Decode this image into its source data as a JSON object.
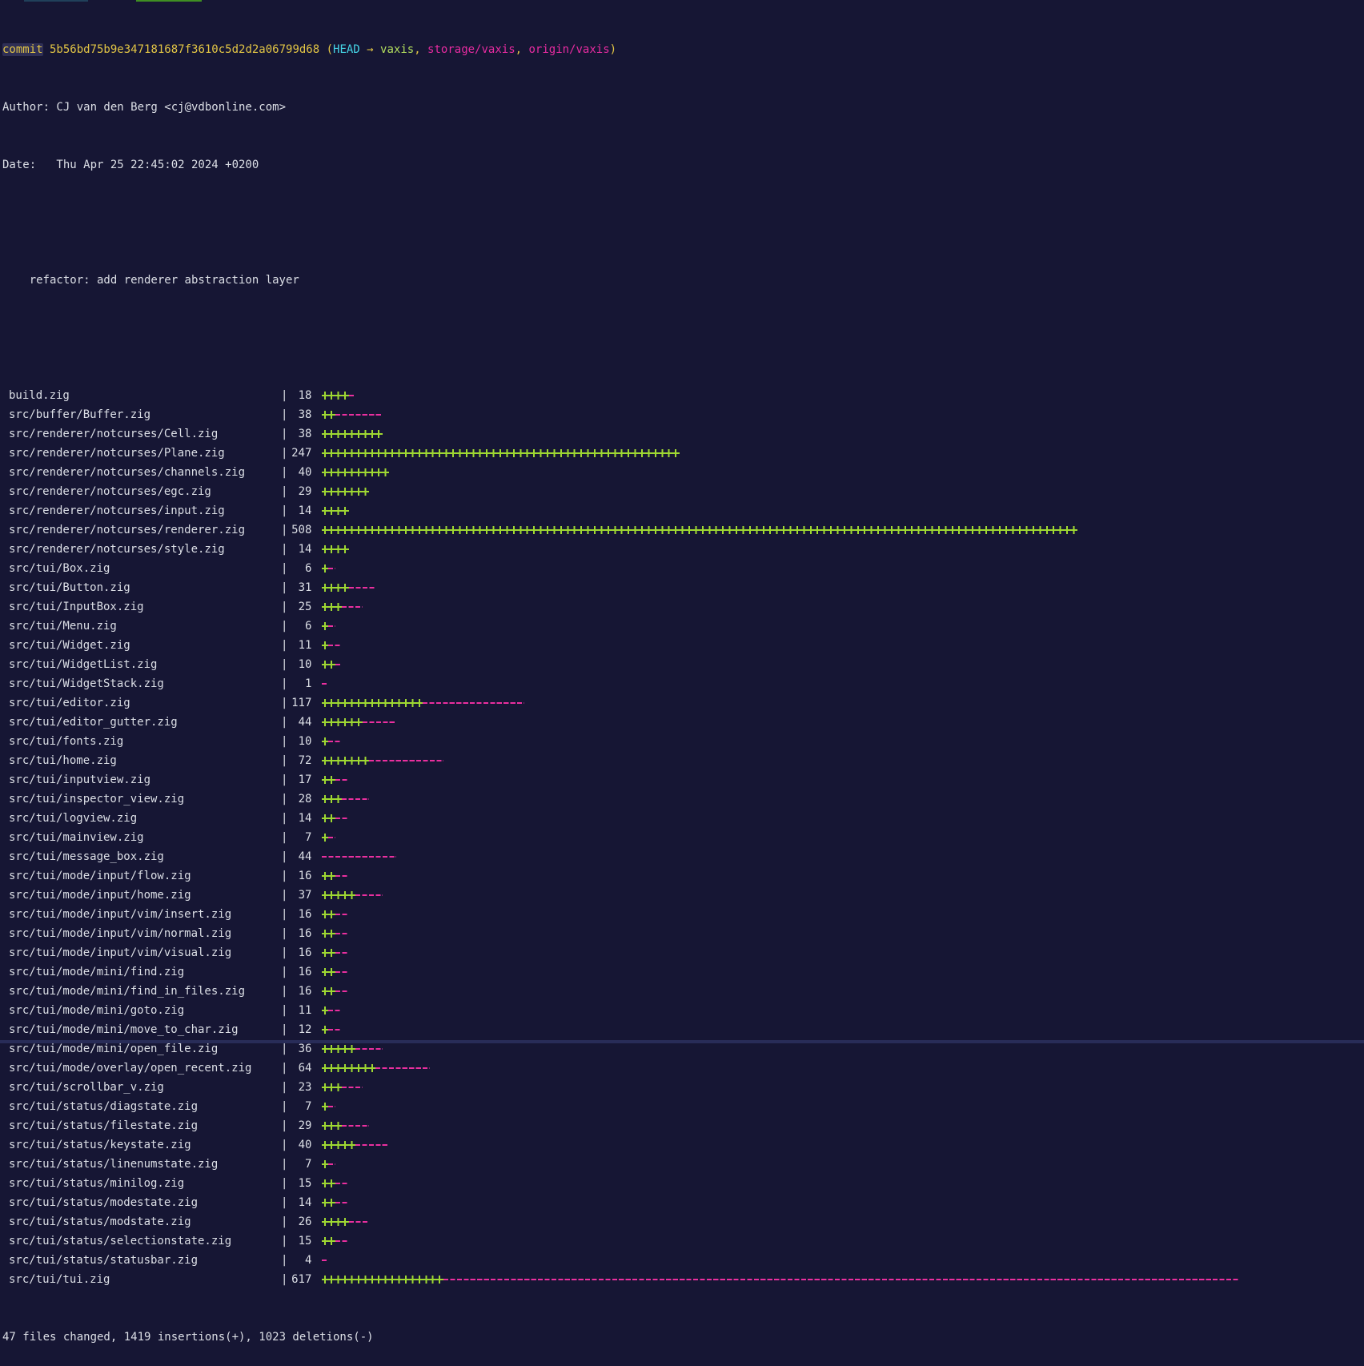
{
  "ui": {
    "pipe": "|"
  },
  "colors": {
    "background": "#161634",
    "foreground": "#dcdfe6",
    "yellow": "#e2c545",
    "cyan": "#45d5e6",
    "branch_green": "#b3df5e",
    "branch_pink": "#e62ba0",
    "plus_green": "#9fd832",
    "minus_pink": "#ea2f9f"
  },
  "commit_line": {
    "commit_label": "commit",
    "hash_open": " 5b56bd75b9e347181687f3610c5d2d2a06799d68 (",
    "head": "HEAD",
    "arrow": " → ",
    "branch": "vaxis",
    "comma1": ", ",
    "remote1": "storage/vaxis",
    "comma2": ", ",
    "remote2": "origin/vaxis",
    "close": ")"
  },
  "author_line": "Author: CJ van den Berg <cj@vdbonline.com>",
  "date_line": "Date:   Thu Apr 25 22:45:02 2024 +0200",
  "message": "refactor: add renderer abstraction layer",
  "summary": "47 files changed, 1419 insertions(+), 1023 deletions(-)",
  "files": [
    {
      "name": "build.zig",
      "changes": "18",
      "plus": 4,
      "minus": 1
    },
    {
      "name": "src/buffer/Buffer.zig",
      "changes": "38",
      "plus": 2,
      "minus": 7
    },
    {
      "name": "src/renderer/notcurses/Cell.zig",
      "changes": "38",
      "plus": 9,
      "minus": 0
    },
    {
      "name": "src/renderer/notcurses/Plane.zig",
      "changes": "247",
      "plus": 53,
      "minus": 0
    },
    {
      "name": "src/renderer/notcurses/channels.zig",
      "changes": "40",
      "plus": 10,
      "minus": 0
    },
    {
      "name": "src/renderer/notcurses/egc.zig",
      "changes": "29",
      "plus": 7,
      "minus": 0
    },
    {
      "name": "src/renderer/notcurses/input.zig",
      "changes": "14",
      "plus": 4,
      "minus": 0
    },
    {
      "name": "src/renderer/notcurses/renderer.zig",
      "changes": "508",
      "plus": 112,
      "minus": 0
    },
    {
      "name": "src/renderer/notcurses/style.zig",
      "changes": "14",
      "plus": 4,
      "minus": 0
    },
    {
      "name": "src/tui/Box.zig",
      "changes": "6",
      "plus": 1,
      "minus": 1
    },
    {
      "name": "src/tui/Button.zig",
      "changes": "31",
      "plus": 4,
      "minus": 4
    },
    {
      "name": "src/tui/InputBox.zig",
      "changes": "25",
      "plus": 3,
      "minus": 3
    },
    {
      "name": "src/tui/Menu.zig",
      "changes": "6",
      "plus": 1,
      "minus": 1
    },
    {
      "name": "src/tui/Widget.zig",
      "changes": "11",
      "plus": 1,
      "minus": 2
    },
    {
      "name": "src/tui/WidgetList.zig",
      "changes": "10",
      "plus": 2,
      "minus": 1
    },
    {
      "name": "src/tui/WidgetStack.zig",
      "changes": "1",
      "plus": 0,
      "minus": 1
    },
    {
      "name": "src/tui/editor.zig",
      "changes": "117",
      "plus": 15,
      "minus": 15
    },
    {
      "name": "src/tui/editor_gutter.zig",
      "changes": "44",
      "plus": 6,
      "minus": 5
    },
    {
      "name": "src/tui/fonts.zig",
      "changes": "10",
      "plus": 1,
      "minus": 2
    },
    {
      "name": "src/tui/home.zig",
      "changes": "72",
      "plus": 7,
      "minus": 11
    },
    {
      "name": "src/tui/inputview.zig",
      "changes": "17",
      "plus": 2,
      "minus": 2
    },
    {
      "name": "src/tui/inspector_view.zig",
      "changes": "28",
      "plus": 3,
      "minus": 4
    },
    {
      "name": "src/tui/logview.zig",
      "changes": "14",
      "plus": 2,
      "minus": 2
    },
    {
      "name": "src/tui/mainview.zig",
      "changes": "7",
      "plus": 1,
      "minus": 1
    },
    {
      "name": "src/tui/message_box.zig",
      "changes": "44",
      "plus": 0,
      "minus": 11
    },
    {
      "name": "src/tui/mode/input/flow.zig",
      "changes": "16",
      "plus": 2,
      "minus": 2
    },
    {
      "name": "src/tui/mode/input/home.zig",
      "changes": "37",
      "plus": 5,
      "minus": 4
    },
    {
      "name": "src/tui/mode/input/vim/insert.zig",
      "changes": "16",
      "plus": 2,
      "minus": 2
    },
    {
      "name": "src/tui/mode/input/vim/normal.zig",
      "changes": "16",
      "plus": 2,
      "minus": 2
    },
    {
      "name": "src/tui/mode/input/vim/visual.zig",
      "changes": "16",
      "plus": 2,
      "minus": 2
    },
    {
      "name": "src/tui/mode/mini/find.zig",
      "changes": "16",
      "plus": 2,
      "minus": 2
    },
    {
      "name": "src/tui/mode/mini/find_in_files.zig",
      "changes": "16",
      "plus": 2,
      "minus": 2
    },
    {
      "name": "src/tui/mode/mini/goto.zig",
      "changes": "11",
      "plus": 1,
      "minus": 2
    },
    {
      "name": "src/tui/mode/mini/move_to_char.zig",
      "changes": "12",
      "plus": 1,
      "minus": 2
    },
    {
      "name": "src/tui/mode/mini/open_file.zig",
      "changes": "36",
      "plus": 5,
      "minus": 4
    },
    {
      "name": "src/tui/mode/overlay/open_recent.zig",
      "changes": "64",
      "plus": 8,
      "minus": 8
    },
    {
      "name": "src/tui/scrollbar_v.zig",
      "changes": "23",
      "plus": 3,
      "minus": 3
    },
    {
      "name": "src/tui/status/diagstate.zig",
      "changes": "7",
      "plus": 1,
      "minus": 1
    },
    {
      "name": "src/tui/status/filestate.zig",
      "changes": "29",
      "plus": 3,
      "minus": 4
    },
    {
      "name": "src/tui/status/keystate.zig",
      "changes": "40",
      "plus": 5,
      "minus": 5
    },
    {
      "name": "src/tui/status/linenumstate.zig",
      "changes": "7",
      "plus": 1,
      "minus": 1
    },
    {
      "name": "src/tui/status/minilog.zig",
      "changes": "15",
      "plus": 2,
      "minus": 2
    },
    {
      "name": "src/tui/status/modestate.zig",
      "changes": "14",
      "plus": 2,
      "minus": 2
    },
    {
      "name": "src/tui/status/modstate.zig",
      "changes": "26",
      "plus": 4,
      "minus": 3
    },
    {
      "name": "src/tui/status/selectionstate.zig",
      "changes": "15",
      "plus": 2,
      "minus": 2
    },
    {
      "name": "src/tui/status/statusbar.zig",
      "changes": "4",
      "plus": 0,
      "minus": 1
    },
    {
      "name": "src/tui/tui.zig",
      "changes": "617",
      "plus": 18,
      "minus": 118
    }
  ]
}
